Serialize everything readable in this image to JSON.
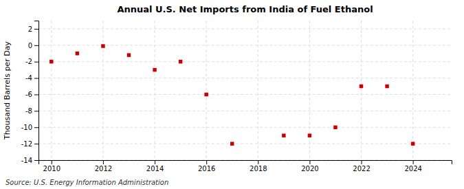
{
  "chart_data": {
    "type": "scatter",
    "title": "Annual U.S. Net Imports from India of Fuel Ethanol",
    "ylabel": "Thousand Barrels per Day",
    "source": "Source: U.S. Energy Information Administration",
    "x": [
      2010,
      2011,
      2012,
      2013,
      2014,
      2015,
      2016,
      2017,
      2019,
      2020,
      2021,
      2022,
      2023,
      2024
    ],
    "values": [
      -2.0,
      -1.0,
      -0.1,
      -1.2,
      -3.0,
      -2.0,
      -6.0,
      -12.0,
      -11.0,
      -11.0,
      -10.0,
      -5.0,
      -5.0,
      -12.0
    ],
    "color": "#cc0000",
    "marker": "square",
    "xlim": [
      2009.5,
      2025.5
    ],
    "ylim": [
      -14,
      3
    ],
    "xticks": [
      2010,
      2012,
      2014,
      2016,
      2018,
      2020,
      2022,
      2024
    ],
    "yticks": [
      2,
      0,
      -2,
      -4,
      -6,
      -8,
      -10,
      -12,
      -14
    ],
    "grid": true
  }
}
